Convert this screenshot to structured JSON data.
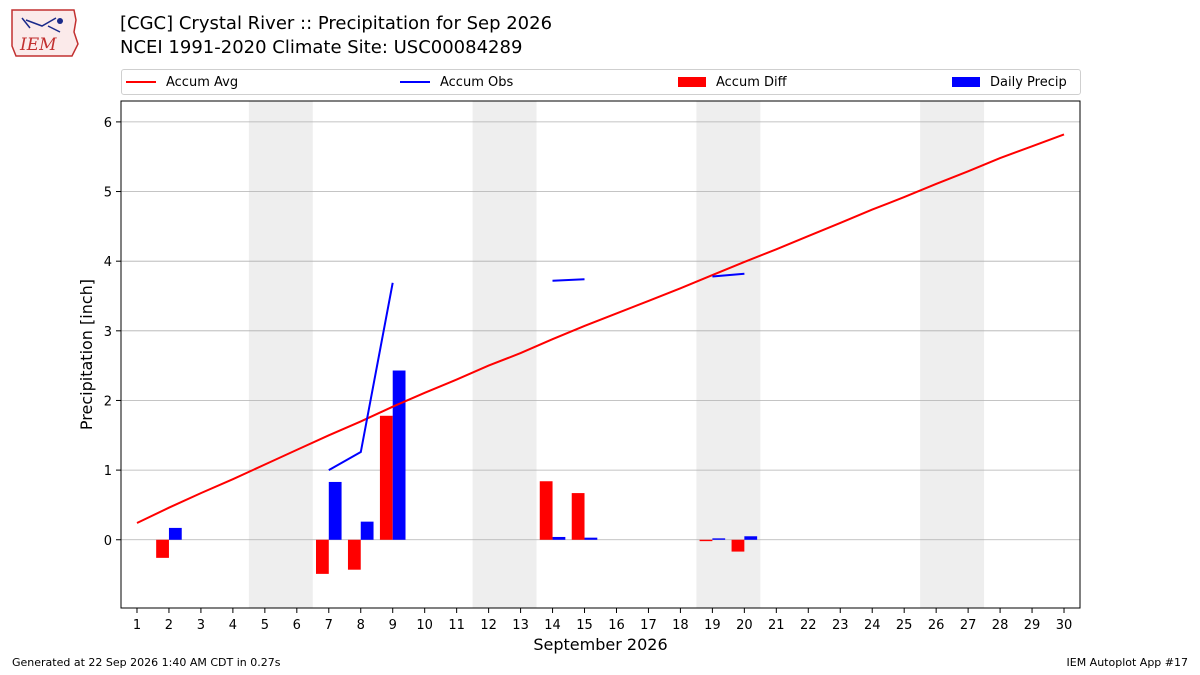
{
  "header": {
    "title_line1": "[CGC] Crystal River :: Precipitation for Sep 2026",
    "title_line2": "NCEI 1991-2020 Climate Site: USC00084289",
    "logo_text": "IEM"
  },
  "legend": {
    "accum_avg": "Accum Avg",
    "accum_obs": "Accum Obs",
    "accum_diff": "Accum Diff",
    "daily_precip": "Daily Precip"
  },
  "colors": {
    "accum_avg": "#ff0000",
    "accum_obs": "#0000ff",
    "accum_diff": "#ff0000",
    "daily_precip": "#0000ff",
    "weekend_band": "#eeeeee",
    "grid": "#b0b0b0"
  },
  "footer": {
    "generated": "Generated at 22 Sep 2026 1:40 AM CDT in 0.27s",
    "app": "IEM Autoplot App #17"
  },
  "chart_data": {
    "type": "bar",
    "title": "[CGC] Crystal River :: Precipitation for Sep 2026",
    "xlabel": "September 2026",
    "ylabel": "Precipitation [inch]",
    "xlim": [
      0.5,
      30.5
    ],
    "ylim": [
      -0.98,
      6.3
    ],
    "x_ticks": [
      1,
      2,
      3,
      4,
      5,
      6,
      7,
      8,
      9,
      10,
      11,
      12,
      13,
      14,
      15,
      16,
      17,
      18,
      19,
      20,
      21,
      22,
      23,
      24,
      25,
      26,
      27,
      28,
      29,
      30
    ],
    "y_ticks": [
      0,
      1,
      2,
      3,
      4,
      5,
      6
    ],
    "grid": true,
    "legend_position": "top",
    "weekend_days": [
      5,
      6,
      12,
      13,
      19,
      20,
      26,
      27
    ],
    "accum_avg": {
      "days": [
        1,
        2,
        3,
        4,
        5,
        6,
        7,
        8,
        9,
        10,
        11,
        12,
        13,
        14,
        15,
        16,
        17,
        18,
        19,
        20,
        21,
        22,
        23,
        24,
        25,
        26,
        27,
        28,
        29,
        30
      ],
      "values": [
        0.24,
        0.46,
        0.67,
        0.87,
        1.08,
        1.29,
        1.5,
        1.7,
        1.91,
        2.11,
        2.3,
        2.5,
        2.68,
        2.88,
        3.07,
        3.25,
        3.43,
        3.61,
        3.8,
        3.99,
        4.17,
        4.36,
        4.55,
        4.74,
        4.92,
        5.11,
        5.29,
        5.48,
        5.65,
        5.82
      ]
    },
    "accum_obs": [
      {
        "days": [
          7,
          8,
          9
        ],
        "values": [
          1.0,
          1.26,
          3.69
        ]
      },
      {
        "days": [
          14,
          15
        ],
        "values": [
          3.72,
          3.74
        ]
      },
      {
        "days": [
          19,
          20
        ],
        "values": [
          3.78,
          3.82
        ]
      }
    ],
    "accum_diff": {
      "days": [
        2,
        7,
        8,
        9,
        14,
        15,
        19,
        20
      ],
      "values": [
        -0.26,
        -0.49,
        -0.43,
        1.78,
        0.84,
        0.67,
        -0.02,
        -0.17
      ]
    },
    "daily_precip": {
      "days": [
        2,
        7,
        8,
        9,
        14,
        15,
        19,
        20
      ],
      "values": [
        0.17,
        0.83,
        0.26,
        2.43,
        0.04,
        0.03,
        0.02,
        0.05
      ]
    }
  }
}
